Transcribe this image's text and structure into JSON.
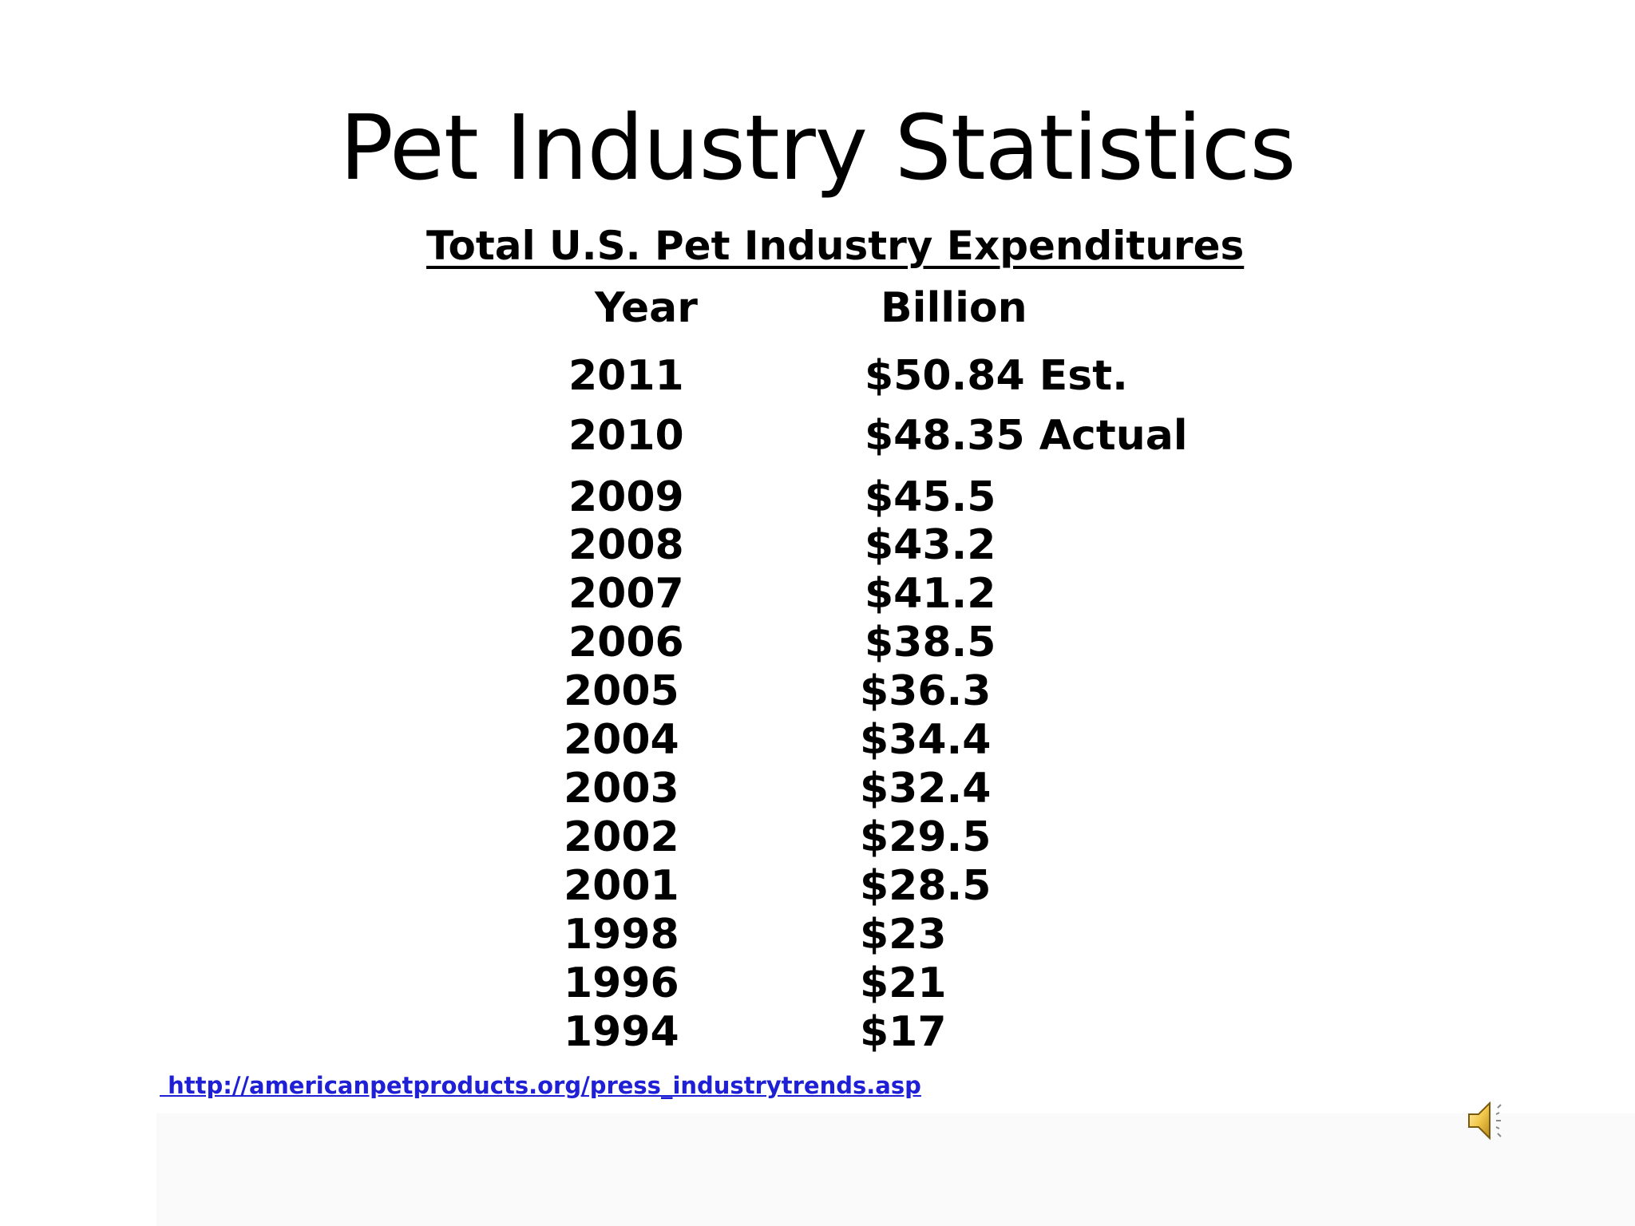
{
  "slide": {
    "title": "Pet Industry Statistics",
    "subtitle": "Total U.S. Pet Industry Expenditures",
    "columns": {
      "year": "Year",
      "billion": "Billion"
    },
    "rows": [
      {
        "year": "2011",
        "value": "$50.84 Est."
      },
      {
        "year": "2010",
        "value": "$48.35 Actual"
      },
      {
        "year": "2009",
        "value": "$45.5"
      },
      {
        "year": "2008",
        "value": "$43.2"
      },
      {
        "year": "2007",
        "value": "$41.2"
      },
      {
        "year": "2006",
        "value": "$38.5"
      },
      {
        "year": "2005",
        "value": "$36.3"
      },
      {
        "year": "2004",
        "value": "$34.4"
      },
      {
        "year": "2003",
        "value": "$32.4"
      },
      {
        "year": "2002",
        "value": "$29.5"
      },
      {
        "year": "2001",
        "value": "$28.5"
      },
      {
        "year": "1998",
        "value": "$23"
      },
      {
        "year": "1996",
        "value": "$21"
      },
      {
        "year": "1994",
        "value": "$17"
      }
    ],
    "source_link": " http://americanpetproducts.org/press_industrytrends.asp",
    "audio_icon": "speaker-icon"
  }
}
